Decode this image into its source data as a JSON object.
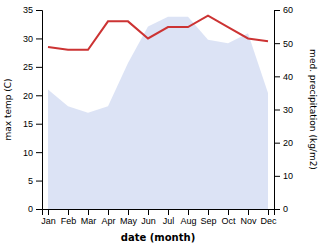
{
  "chart_data": {
    "type": "line",
    "x_label": "date (month)",
    "y_label": "max temp (C)",
    "y2_label": "med. precipitation (kg/m2)",
    "categories": [
      "Jan",
      "Feb",
      "Mar",
      "Apr",
      "May",
      "Jun",
      "Jul",
      "Aug",
      "Sep",
      "Oct",
      "Nov",
      "Dec"
    ],
    "series": [
      {
        "type": "area",
        "axis": "y2",
        "color": "#c5d0ee",
        "values": [
          36,
          31,
          29,
          31,
          44,
          55,
          58,
          58,
          51,
          50,
          53,
          35
        ]
      },
      {
        "type": "line",
        "color": "#cc3333",
        "values": [
          28.5,
          28.0,
          28.0,
          33.0,
          33.0,
          30.0,
          32.0,
          32.0,
          34.0,
          32.0,
          30.0,
          29.5
        ]
      }
    ],
    "ylim": [
      0,
      35
    ],
    "yticks": [
      0,
      5,
      10,
      15,
      20,
      25,
      30,
      35
    ],
    "y2lim": [
      0,
      60
    ],
    "y2ticks": [
      0,
      10,
      20,
      30,
      40,
      50,
      60
    ]
  }
}
